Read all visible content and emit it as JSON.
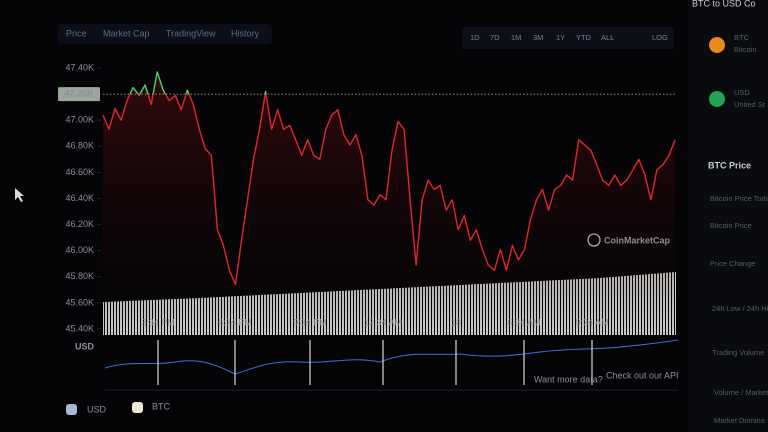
{
  "chart_data": {
    "type": "line",
    "color": "#e0262b",
    "up_color": "#4fd06a",
    "values": [
      47040,
      46930,
      47090,
      47000,
      47150,
      47250,
      47190,
      47270,
      47120,
      47370,
      47230,
      47150,
      47190,
      47080,
      47230,
      47120,
      46930,
      46780,
      46730,
      46160,
      46040,
      45850,
      45740,
      46080,
      46390,
      46700,
      46930,
      47220,
      46930,
      47080,
      46930,
      46960,
      46850,
      46730,
      46850,
      46730,
      46700,
      46930,
      47040,
      47080,
      46890,
      46810,
      46890,
      46730,
      46390,
      46350,
      46430,
      46390,
      46770,
      46990,
      46930,
      46390,
      45890,
      46390,
      46540,
      46470,
      46500,
      46310,
      46390,
      46160,
      46270,
      46080,
      46160,
      46010,
      45890,
      45850,
      46010,
      45850,
      46040,
      45930,
      46010,
      46240,
      46390,
      46470,
      46310,
      46470,
      46500,
      46580,
      46540,
      46850,
      46810,
      46770,
      46660,
      46540,
      46500,
      46580,
      46500,
      46540,
      46620,
      46700,
      46580,
      46390,
      46620,
      46660,
      46730,
      46850
    ],
    "ylim": [
      45400,
      47400
    ],
    "yticks": [
      {
        "value": 45400,
        "label": "45.40K"
      },
      {
        "value": 45600,
        "label": "45.60K"
      },
      {
        "value": 45800,
        "label": "45.80K"
      },
      {
        "value": 46000,
        "label": "46.00K"
      },
      {
        "value": 46200,
        "label": "46.20K"
      },
      {
        "value": 46400,
        "label": "46.40K"
      },
      {
        "value": 46600,
        "label": "46.60K"
      },
      {
        "value": 46800,
        "label": "46.80K"
      },
      {
        "value": 47000,
        "label": "47.00K"
      },
      {
        "value": 47200,
        "label": "47.20K"
      },
      {
        "value": 47400,
        "label": "47.40K"
      }
    ],
    "reference_line": {
      "value": 47200,
      "label": "47.20K"
    },
    "ylabel": "USD",
    "grid": false,
    "watermark": "CoinMarketCap",
    "navigator_labels": [
      "3:34 PM",
      "6:34 PM",
      "9:34 PM",
      "12:34 AM",
      "18",
      "6:34 AM",
      "9:34 AM"
    ]
  },
  "ui": {
    "tabs": [
      "Price",
      "Market Cap",
      "TradingView",
      "History"
    ],
    "ranges": [
      "1D",
      "7D",
      "1M",
      "3M",
      "1Y",
      "YTD",
      "ALL",
      "LOG"
    ],
    "api_prompt": "Want more data?",
    "api_link": "Check out our API",
    "legend": [
      "USD",
      "BTC"
    ],
    "converter_title": "BTC to USD Co",
    "from_code": "BTC",
    "from_name": "Bitcoin",
    "to_code": "USD",
    "to_name": "United St",
    "stats_title": "BTC Price",
    "stats_rows": [
      "Bitcoin Price Today",
      "Bitcoin Price",
      "Price Change",
      "24h Low / 24h High",
      "Trading Volume",
      "Volume / Market",
      "Market Domina"
    ]
  }
}
